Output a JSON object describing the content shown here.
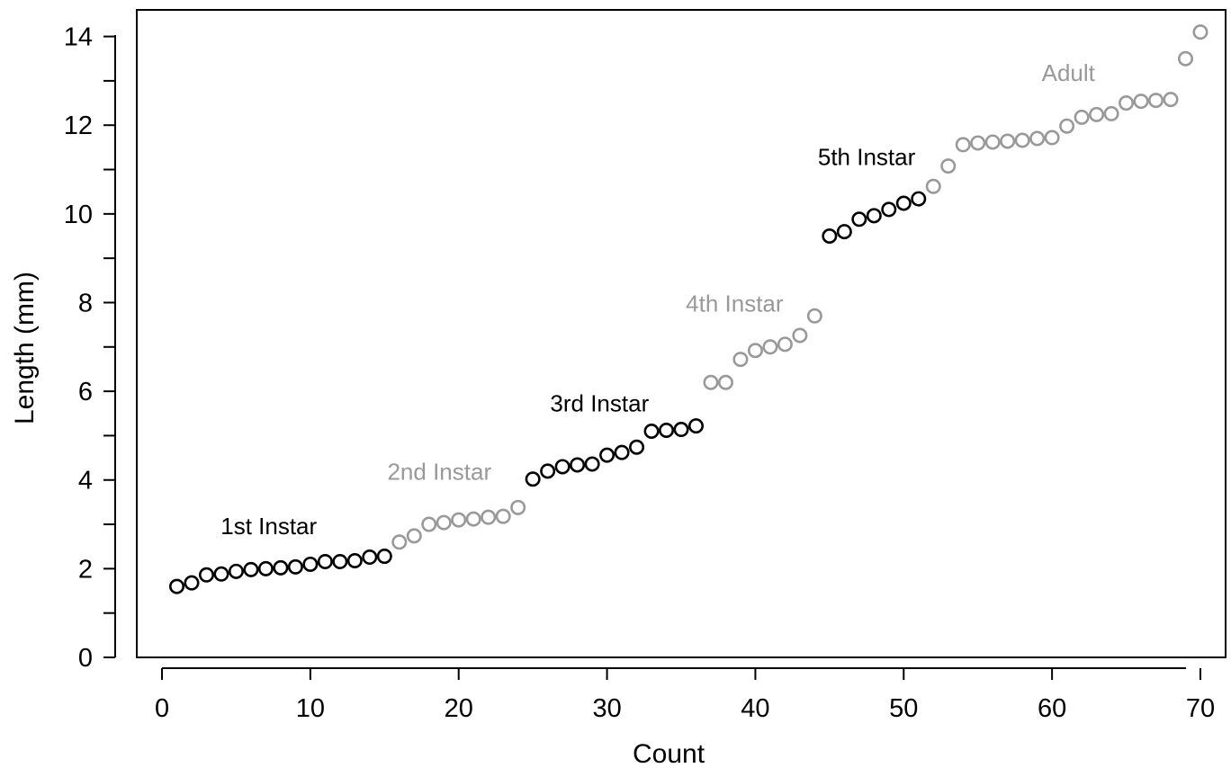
{
  "chart_data": {
    "type": "scatter",
    "xlabel": "Count",
    "ylabel": "Length (mm)",
    "xlim": [
      -1.7,
      71.7
    ],
    "ylim": [
      0,
      14.6
    ],
    "xticks": [
      0,
      10,
      20,
      30,
      40,
      50,
      60,
      70
    ],
    "yticks_major": [
      0,
      2,
      4,
      6,
      8,
      10,
      12,
      14
    ],
    "yticks_minor": [
      1,
      3,
      5,
      7,
      9,
      11,
      13
    ],
    "grid": false,
    "marker": "open-circle",
    "colors": {
      "dark": "#000000",
      "light": "#999999"
    },
    "series": [
      {
        "name": "1st Instar",
        "color": "dark",
        "x": [
          1,
          2,
          3,
          4,
          5,
          6,
          7,
          8,
          9,
          10,
          11,
          12,
          13,
          14,
          15
        ],
        "y": [
          1.6,
          1.68,
          1.86,
          1.88,
          1.94,
          1.98,
          2.0,
          2.02,
          2.04,
          2.1,
          2.16,
          2.16,
          2.18,
          2.26,
          2.28
        ]
      },
      {
        "name": "2nd Instar",
        "color": "light",
        "x": [
          16,
          17,
          18,
          19,
          20,
          21,
          22,
          23,
          24
        ],
        "y": [
          2.6,
          2.74,
          3.0,
          3.04,
          3.1,
          3.12,
          3.16,
          3.18,
          3.38
        ]
      },
      {
        "name": "3rd Instar",
        "color": "dark",
        "x": [
          25,
          26,
          27,
          28,
          29,
          30,
          31,
          32,
          33,
          34,
          35,
          36
        ],
        "y": [
          4.02,
          4.2,
          4.3,
          4.34,
          4.36,
          4.56,
          4.62,
          4.74,
          5.1,
          5.12,
          5.14,
          5.22
        ]
      },
      {
        "name": "4th Instar",
        "color": "light",
        "x": [
          37,
          38,
          39,
          40,
          41,
          42,
          43,
          44
        ],
        "y": [
          6.2,
          6.2,
          6.72,
          6.92,
          7.0,
          7.06,
          7.26,
          7.7
        ]
      },
      {
        "name": "5th Instar",
        "color": "dark",
        "x": [
          45,
          46,
          47,
          48,
          49,
          50,
          51
        ],
        "y": [
          9.5,
          9.6,
          9.88,
          9.96,
          10.1,
          10.24,
          10.34
        ]
      },
      {
        "name": "Adult",
        "color": "light",
        "x": [
          52,
          53,
          54,
          55,
          56,
          57,
          58,
          59,
          60,
          61,
          62,
          63,
          64,
          65,
          66,
          67,
          68,
          69,
          70
        ],
        "y": [
          10.62,
          11.08,
          11.56,
          11.6,
          11.62,
          11.64,
          11.66,
          11.7,
          11.72,
          11.98,
          12.18,
          12.24,
          12.26,
          12.5,
          12.54,
          12.56,
          12.58,
          13.5,
          14.1
        ]
      }
    ],
    "annotations": [
      {
        "text": "1st Instar",
        "x": 7.2,
        "y": 2.78,
        "color": "dark"
      },
      {
        "text": "2nd Instar",
        "x": 18.7,
        "y": 4.0,
        "color": "light"
      },
      {
        "text": "3rd Instar",
        "x": 29.5,
        "y": 5.55,
        "color": "dark"
      },
      {
        "text": "4th Instar",
        "x": 38.6,
        "y": 7.8,
        "color": "light"
      },
      {
        "text": "5th Instar",
        "x": 47.5,
        "y": 11.1,
        "color": "dark"
      },
      {
        "text": "Adult",
        "x": 61.1,
        "y": 13.0,
        "color": "light"
      }
    ]
  }
}
